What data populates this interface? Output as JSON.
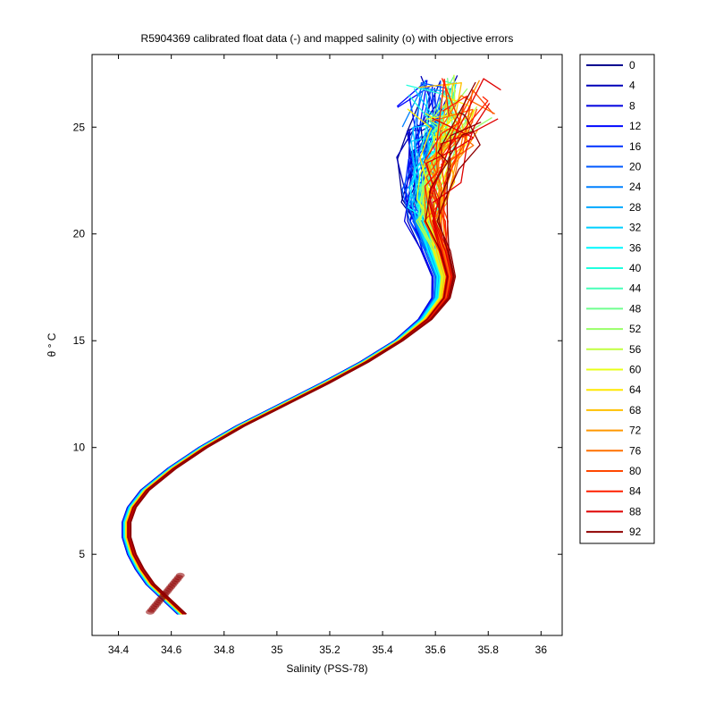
{
  "chart_data": {
    "type": "line",
    "title": "R5904369 calibrated float data (-) and mapped salinity (o) with objective errors",
    "xlabel": "Salinity (PSS-78)",
    "ylabel": "θ ° C",
    "xlim": [
      34.3,
      36.08
    ],
    "ylim": [
      1.2,
      28.4
    ],
    "xticks": [
      "34.4",
      "34.6",
      "34.8",
      "35",
      "35.2",
      "35.4",
      "35.6",
      "35.8",
      "36"
    ],
    "yticks": [
      "5",
      "10",
      "15",
      "20",
      "25"
    ],
    "grid": false,
    "legend_position": "outside-right",
    "legend": [
      "0",
      "4",
      "8",
      "12",
      "16",
      "20",
      "24",
      "28",
      "32",
      "36",
      "40",
      "44",
      "48",
      "52",
      "56",
      "60",
      "64",
      "68",
      "72",
      "76",
      "80",
      "84",
      "88",
      "92"
    ],
    "legend_colors": [
      "#00008f",
      "#0000b8",
      "#0000df",
      "#0008ff",
      "#0030ff",
      "#0058ff",
      "#0080ff",
      "#00a8ff",
      "#00d0ff",
      "#00f8ff",
      "#20ffdf",
      "#48ffb8",
      "#70ff8f",
      "#98ff68",
      "#c0ff40",
      "#e8ff18",
      "#ffe800",
      "#ffc000",
      "#ff9800",
      "#ff7000",
      "#ff4800",
      "#ff2000",
      "#df0000",
      "#8f0000"
    ],
    "profile_template": {
      "s": [
        34.64,
        34.58,
        34.52,
        34.48,
        34.45,
        34.43,
        34.43,
        34.45,
        34.5,
        34.6,
        34.72,
        34.86,
        35.02,
        35.18,
        35.33,
        35.46,
        35.56,
        35.62,
        35.63,
        35.6,
        35.57,
        35.56,
        35.58,
        35.62,
        35.65
      ],
      "t": [
        2.2,
        2.9,
        3.6,
        4.3,
        5.0,
        5.8,
        6.5,
        7.2,
        8.0,
        9.0,
        10.0,
        11.0,
        12.0,
        13.0,
        14.0,
        15.0,
        16.0,
        17.0,
        18.0,
        19.2,
        20.6,
        21.8,
        23.0,
        24.4,
        25.6
      ]
    }
  }
}
